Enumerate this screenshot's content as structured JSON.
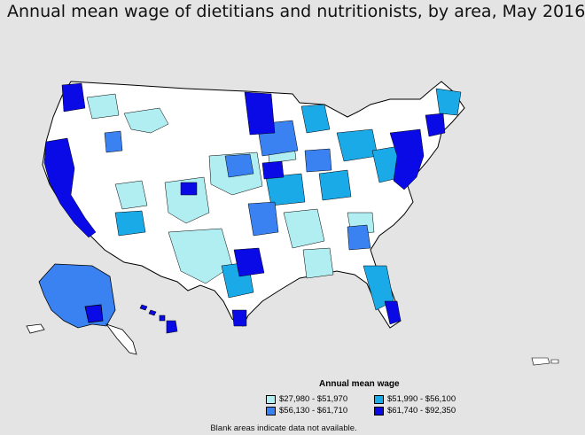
{
  "title": "Annual mean wage of dietitians and nutritionists, by area, May 2016",
  "legend": {
    "title": "Annual mean wage",
    "items": [
      {
        "label": "$27,980 - $51,970",
        "color": "#b0eef2"
      },
      {
        "label": "$51,990 - $56,100",
        "color": "#1aaae8"
      },
      {
        "label": "$56,130 - $61,710",
        "color": "#3a82f2"
      },
      {
        "label": "$61,740 - $92,350",
        "color": "#0a0ae6"
      }
    ]
  },
  "footnote": "Blank areas indicate data not available.",
  "colors": {
    "background": "#e4e4e4",
    "blank": "#ffffff",
    "tier1": "#b0eef2",
    "tier2": "#1aaae8",
    "tier3": "#3a82f2",
    "tier4": "#0a0ae6"
  }
}
